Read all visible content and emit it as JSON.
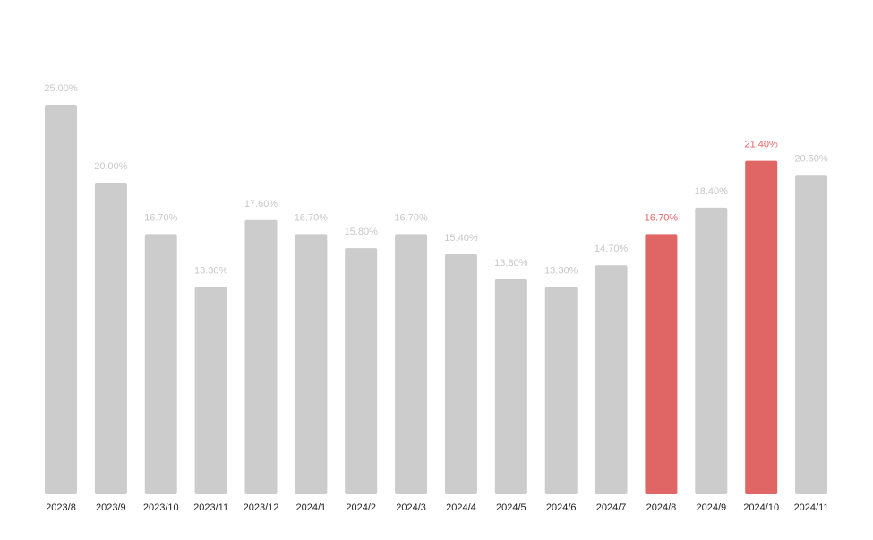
{
  "chart_data": {
    "type": "bar",
    "title": "",
    "xlabel": "",
    "ylabel": "",
    "ylim": [
      0,
      25.0
    ],
    "grid": false,
    "categories": [
      "2023/8",
      "2023/9",
      "2023/10",
      "2023/11",
      "2023/12",
      "2024/1",
      "2024/2",
      "2024/3",
      "2024/4",
      "2024/5",
      "2024/6",
      "2024/7",
      "2024/8",
      "2024/9",
      "2024/10",
      "2024/11"
    ],
    "values": [
      25.0,
      20.0,
      16.7,
      13.3,
      17.6,
      16.7,
      15.8,
      16.7,
      15.4,
      13.8,
      13.3,
      14.7,
      16.7,
      18.4,
      21.4,
      20.5
    ],
    "value_labels": [
      "25.00%",
      "20.00%",
      "16.70%",
      "13.30%",
      "17.60%",
      "16.70%",
      "15.80%",
      "16.70%",
      "15.40%",
      "13.80%",
      "13.30%",
      "14.70%",
      "16.70%",
      "18.40%",
      "21.40%",
      "20.50%"
    ],
    "highlighted": [
      "2024/8",
      "2024/10"
    ],
    "colors": {
      "bar": "#cccccc",
      "bar_highlight": "#e06666",
      "label": "#c8c8c8",
      "label_highlight": "#e06666",
      "tick": "#222222"
    }
  }
}
